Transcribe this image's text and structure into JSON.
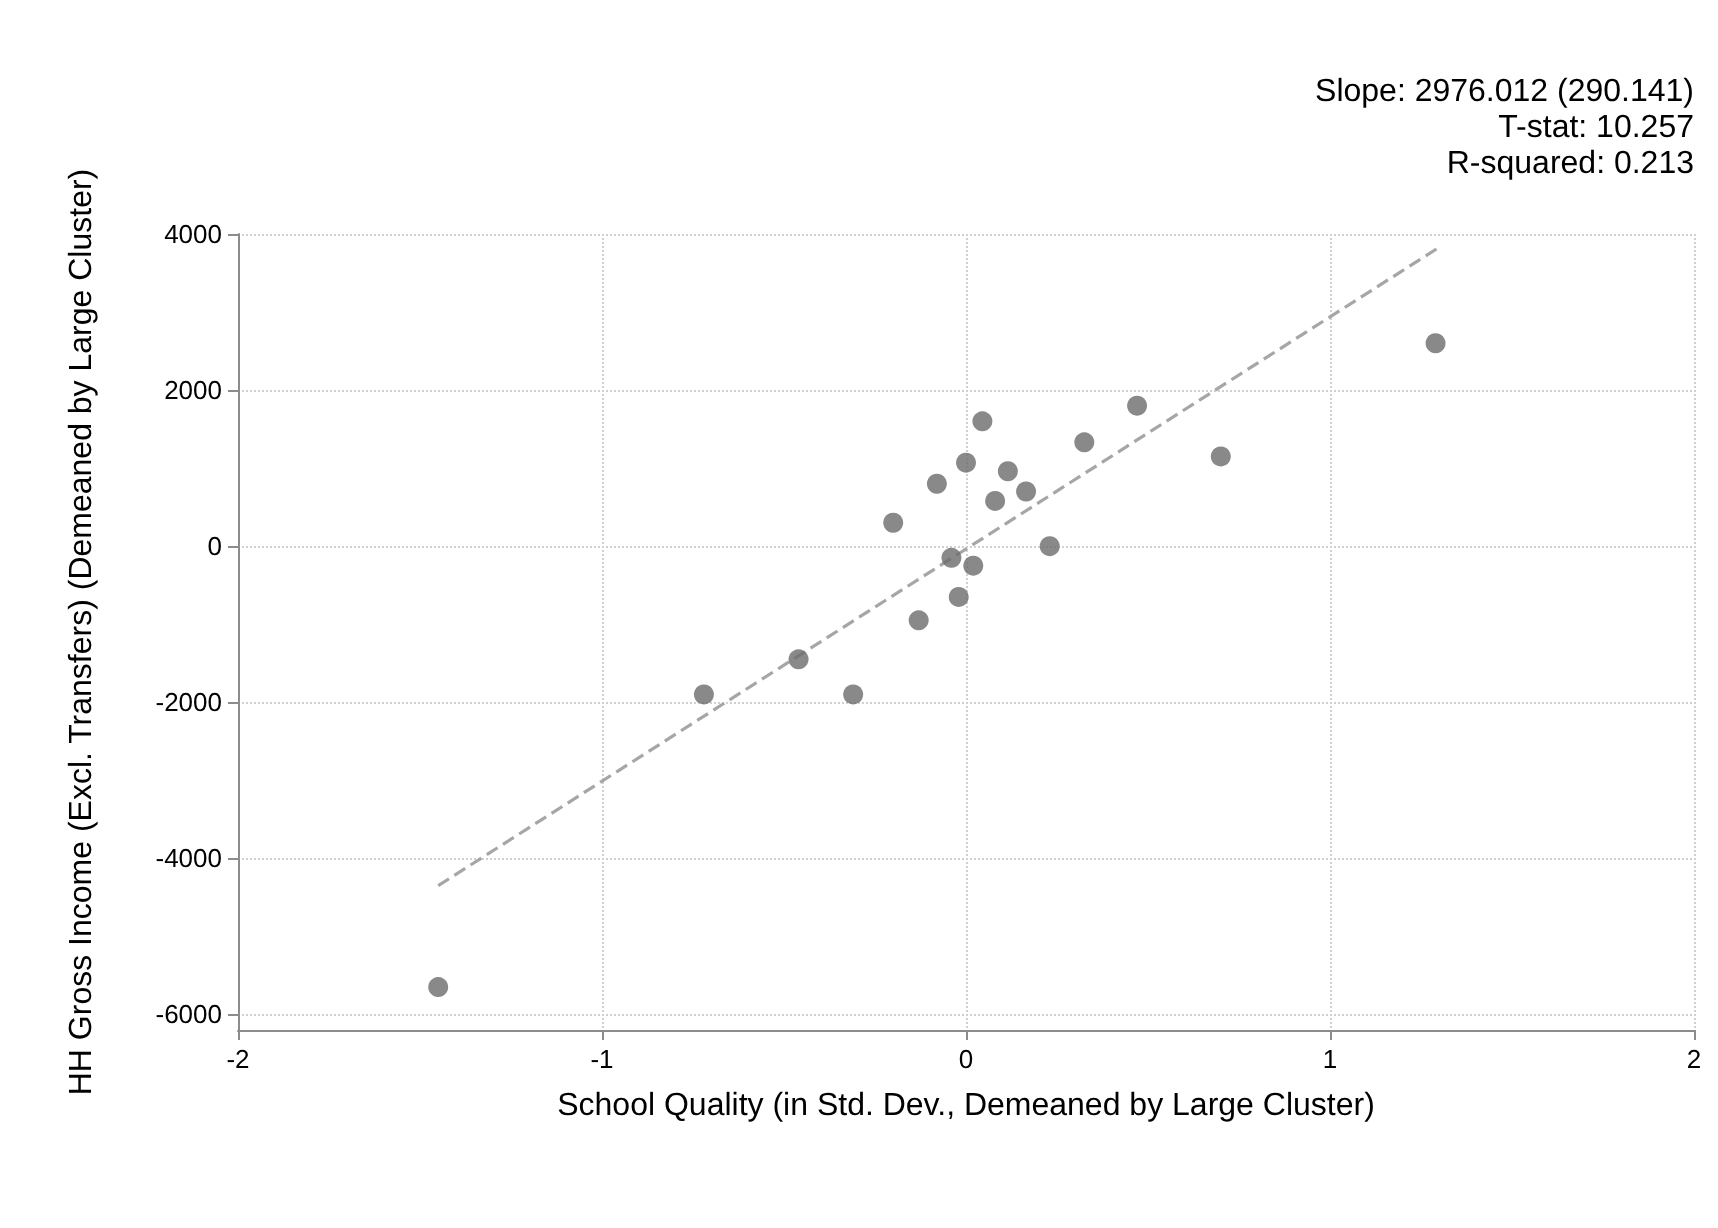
{
  "chart_data": {
    "type": "scatter",
    "xlabel": "School Quality (in Std. Dev., Demeaned by Large Cluster)",
    "ylabel": "HH Gross Income (Excl. Transfers) (Demeaned by Large Cluster)",
    "annotations": [
      "Slope: 2976.012 (290.141)",
      "T-stat: 10.257",
      "R-squared: 0.213"
    ],
    "series": [
      {
        "color": "#6b6b6b",
        "marker": "circle",
        "x": [
          -1.45,
          -0.72,
          -0.46,
          -0.31,
          -0.2,
          -0.13,
          -0.08,
          -0.04,
          -0.02,
          0.0,
          0.02,
          0.045,
          0.08,
          0.115,
          0.165,
          0.23,
          0.325,
          0.47,
          0.7,
          1.29
        ],
        "values": [
          -5650,
          -1900,
          -1450,
          -1900,
          300,
          -950,
          800,
          -150,
          -650,
          1070,
          -250,
          1600,
          580,
          960,
          700,
          0,
          1330,
          1800,
          1150,
          2600
        ]
      },
      {
        "type": "line",
        "color": "#a6a6a6",
        "marker": "none",
        "line_style": "dashed",
        "x": [
          -1.45,
          1.3
        ],
        "values": [
          -4350,
          3830
        ]
      }
    ],
    "xlim": [
      -2,
      2
    ],
    "xticks": [
      -2,
      -1,
      0,
      1,
      2
    ],
    "ylim": [
      -6200,
      4000
    ],
    "yticks": [
      -6000,
      -4000,
      -2000,
      0,
      2000,
      4000
    ],
    "grid": true
  }
}
